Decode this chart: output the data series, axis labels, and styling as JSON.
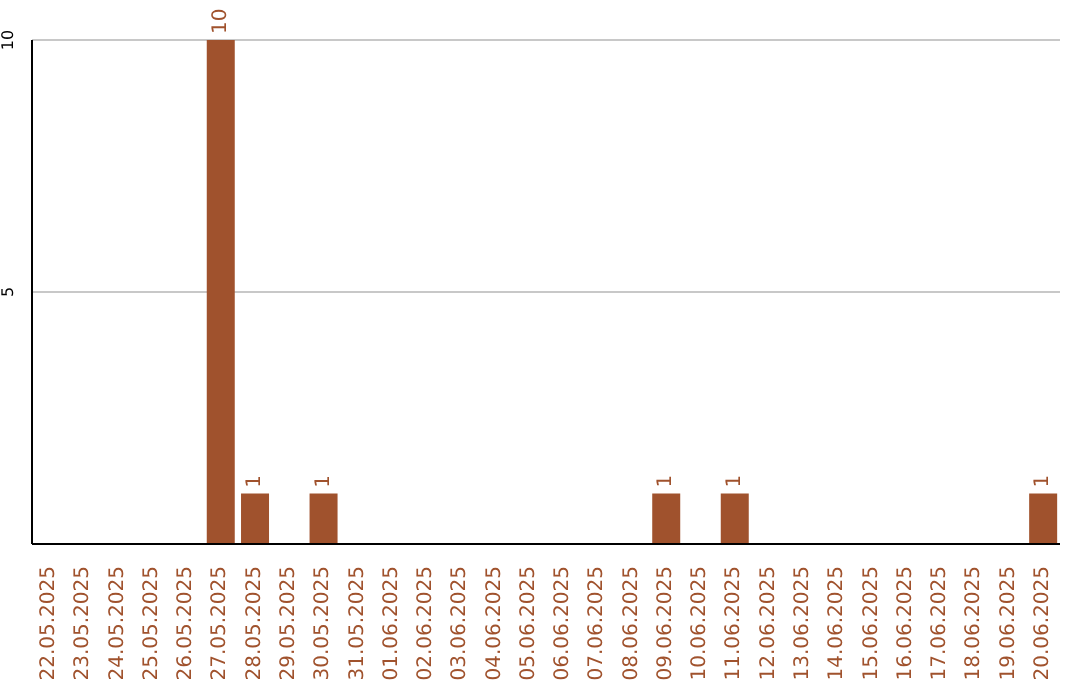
{
  "chart_data": {
    "type": "bar",
    "categories": [
      "22.05.2025",
      "23.05.2025",
      "24.05.2025",
      "25.05.2025",
      "26.05.2025",
      "27.05.2025",
      "28.05.2025",
      "29.05.2025",
      "30.05.2025",
      "31.05.2025",
      "01.06.2025",
      "02.06.2025",
      "03.06.2025",
      "04.06.2025",
      "05.06.2025",
      "06.06.2025",
      "07.06.2025",
      "08.06.2025",
      "09.06.2025",
      "10.06.2025",
      "11.06.2025",
      "12.06.2025",
      "13.06.2025",
      "14.06.2025",
      "15.06.2025",
      "16.06.2025",
      "17.06.2025",
      "18.06.2025",
      "19.06.2025",
      "20.06.2025"
    ],
    "values": [
      0,
      0,
      0,
      0,
      0,
      10,
      1,
      0,
      1,
      0,
      0,
      0,
      0,
      0,
      0,
      0,
      0,
      0,
      1,
      0,
      1,
      0,
      0,
      0,
      0,
      0,
      0,
      0,
      0,
      1
    ],
    "value_labels": [
      null,
      null,
      null,
      null,
      null,
      "10",
      "1",
      null,
      "1",
      null,
      null,
      null,
      null,
      null,
      null,
      null,
      null,
      null,
      "1",
      null,
      "1",
      null,
      null,
      null,
      null,
      null,
      null,
      null,
      null,
      "1"
    ],
    "color": "#a0522d",
    "ylim": [
      0,
      10
    ],
    "yticks": [
      5,
      10
    ],
    "grid": "y"
  }
}
